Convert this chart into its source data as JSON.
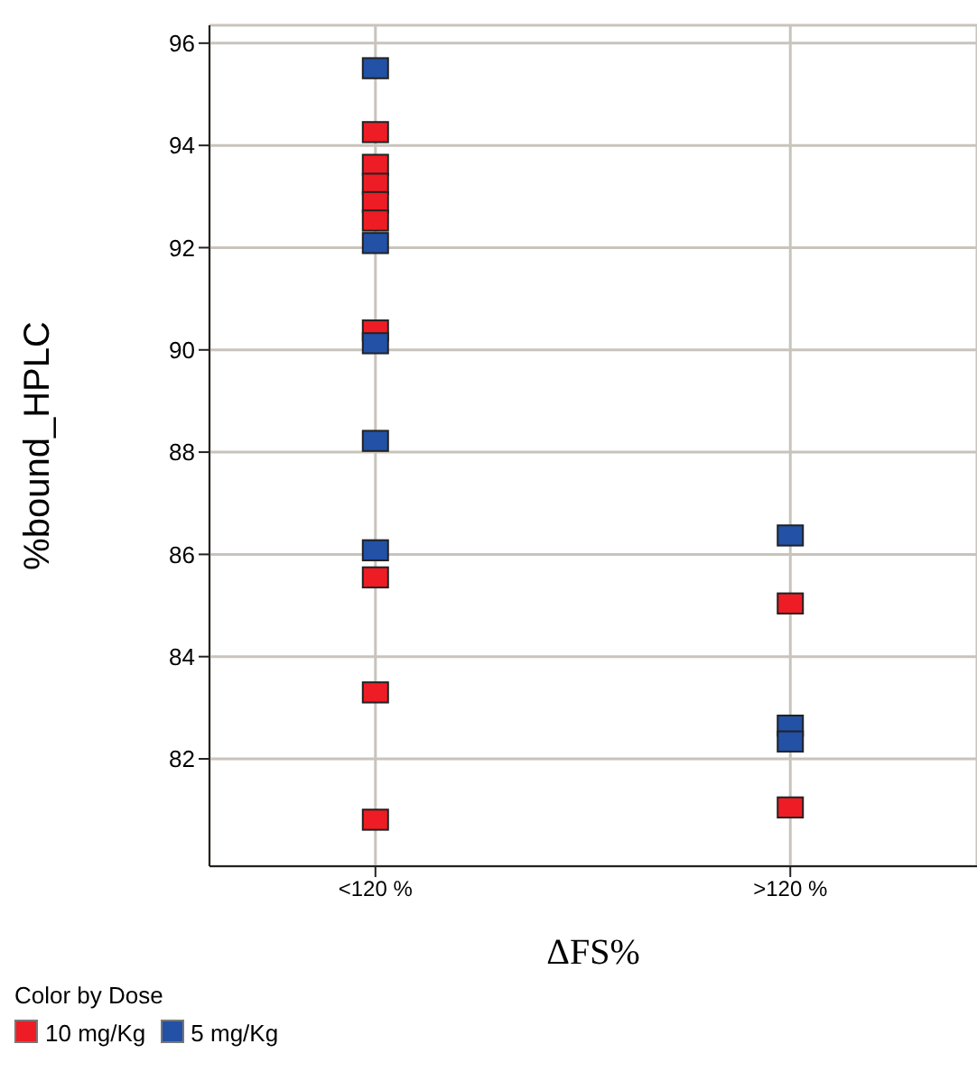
{
  "chart_data": {
    "type": "scatter",
    "xlabel": "ΔFS%",
    "ylabel": "%bound_HPLC",
    "legend_title": "Color by Dose",
    "categories": [
      "<120 %",
      ">120 %"
    ],
    "series": [
      {
        "name": "10 mg/Kg",
        "color": "#ee1c25",
        "x": [
          "<120 %",
          "<120 %",
          "<120 %",
          "<120 %",
          "<120 %",
          "<120 %",
          "<120 %",
          "<120 %",
          "<120 %",
          ">120 %",
          ">120 %"
        ],
        "values": [
          94.26,
          93.62,
          93.25,
          92.89,
          92.53,
          90.38,
          85.55,
          83.3,
          80.81,
          85.04,
          81.05
        ]
      },
      {
        "name": "5 mg/Kg",
        "color": "#2251a6",
        "x": [
          "<120 %",
          "<120 %",
          "<120 %",
          "<120 %",
          "<120 %",
          ">120 %",
          ">120 %",
          ">120 %"
        ],
        "values": [
          95.51,
          92.09,
          90.13,
          88.22,
          86.08,
          86.37,
          82.65,
          82.34
        ]
      }
    ],
    "ylim": [
      79.9,
      96.35
    ],
    "yticks": [
      82,
      84,
      86,
      88,
      90,
      92,
      94,
      96
    ],
    "grid": true,
    "legend": "bottom left",
    "marker": "square"
  }
}
